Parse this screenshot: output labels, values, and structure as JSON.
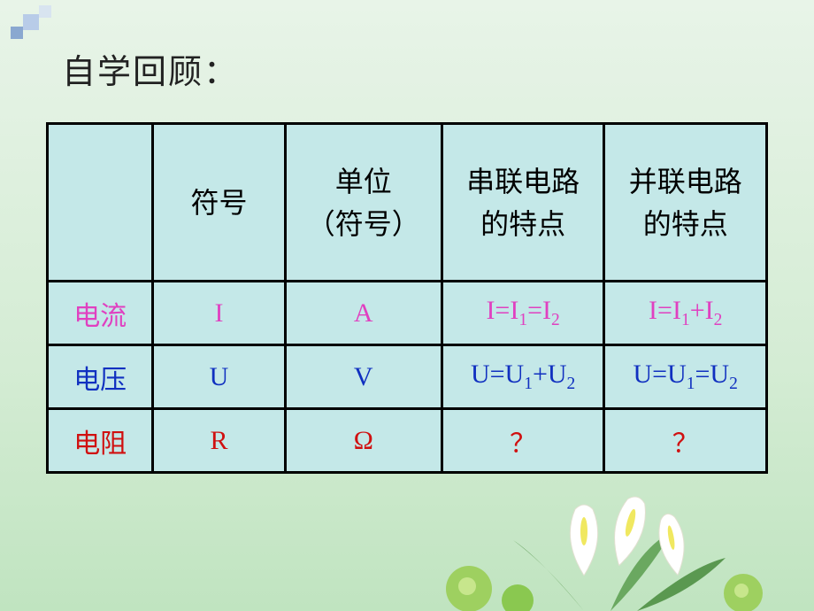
{
  "title": "自学回顾：",
  "headers": {
    "col1": "",
    "col2": "符号",
    "col3_line1": "单位",
    "col3_line2": "（符号）",
    "col4_line1": "串联电路",
    "col4_line2": "的特点",
    "col5_line1": "并联电路",
    "col5_line2": "的特点"
  },
  "rows": [
    {
      "label": "电流",
      "label_color": "#e040c0",
      "symbol": "I",
      "symbol_color": "#e040c0",
      "unit": "A",
      "unit_color": "#e040c0",
      "series_html": "I=I<sub>1</sub>=I<sub>2</sub>",
      "series_color": "#e040c0",
      "parallel_html": "I=I<sub>1</sub>+I<sub>2</sub>",
      "parallel_color": "#e040c0"
    },
    {
      "label": "电压",
      "label_color": "#1030c0",
      "symbol": "U",
      "symbol_color": "#1030c0",
      "unit": "V",
      "unit_color": "#1030c0",
      "series_html": "U=U<sub>1</sub>+U<sub>2</sub>",
      "series_color": "#1030c0",
      "parallel_html": "U=U<sub>1</sub>=U<sub>2</sub>",
      "parallel_color": "#1030c0"
    },
    {
      "label": "电阻",
      "label_color": "#d01010",
      "symbol": "R",
      "symbol_color": "#d01010",
      "unit": "Ω",
      "unit_color": "#d01010",
      "series_html": "？",
      "series_color": "#d01010",
      "parallel_html": "？",
      "parallel_color": "#d01010"
    }
  ],
  "style": {
    "bg_gradient_top": "#e8f4e8",
    "bg_gradient_bottom": "#c0e4c0",
    "table_bg": "#c4e8e8",
    "border_color": "#000000",
    "title_fontsize": 38,
    "header_fontsize": 32,
    "cell_fontsize": 30,
    "colors": {
      "magenta": "#e040c0",
      "blue": "#1030c0",
      "red": "#d01010"
    }
  },
  "decoration": {
    "corner_squares": [
      "#8aa8d0",
      "#b8cce8",
      "#d8e4f0"
    ],
    "flower_colors": {
      "petal": "#ffffff",
      "center": "#f0e860",
      "leaf": "#5a9850",
      "ball_green": "#8ac850",
      "ball_light": "#d8f0a0"
    }
  }
}
